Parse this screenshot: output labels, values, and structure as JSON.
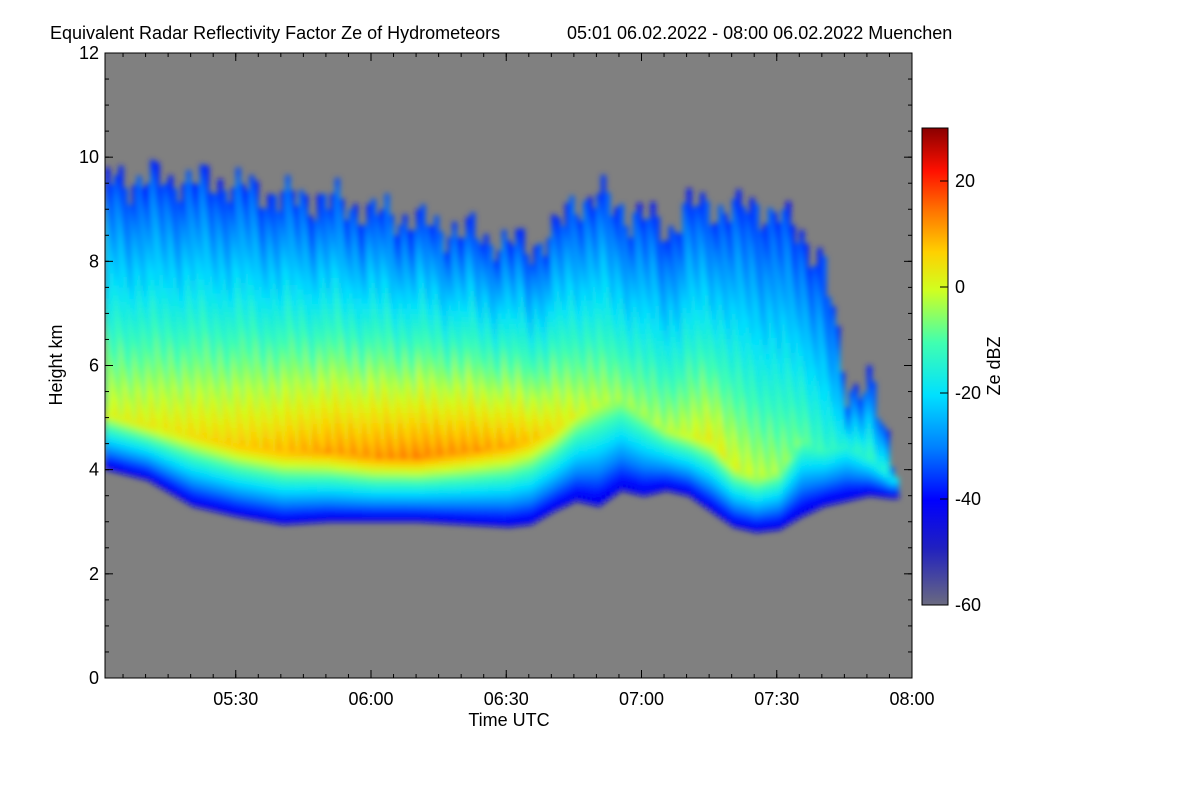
{
  "chart_data": {
    "type": "heatmap",
    "title": "Equivalent Radar Reflectivity Factor Ze of Hydrometeors",
    "subtitle": "05:01 06.02.2022 - 08:00 06.02.2022 Muenchen",
    "xlabel": "Time UTC",
    "ylabel": "Height km",
    "x_unit": "minutes of day (UTC)",
    "xlim": [
      301,
      480
    ],
    "ylim": [
      0,
      12
    ],
    "x_ticks": [
      {
        "value": 330,
        "label": "05:30"
      },
      {
        "value": 360,
        "label": "06:00"
      },
      {
        "value": 390,
        "label": "06:30"
      },
      {
        "value": 420,
        "label": "07:00"
      },
      {
        "value": 450,
        "label": "07:30"
      },
      {
        "value": 480,
        "label": "08:00"
      }
    ],
    "y_ticks": [
      0,
      2,
      4,
      6,
      8,
      10,
      12
    ],
    "colorbar": {
      "label": "Ze dBZ",
      "range": [
        -60,
        30
      ],
      "ticks": [
        -60,
        -40,
        -20,
        0,
        20
      ]
    },
    "background_color": "#808080",
    "cloud_profile": {
      "description_x": "time in minutes of day",
      "time": [
        301,
        310,
        320,
        330,
        340,
        350,
        360,
        370,
        380,
        390,
        395,
        400,
        405,
        410,
        415,
        420,
        425,
        430,
        435,
        440,
        445,
        450,
        455,
        460,
        465,
        470,
        475
      ],
      "base_km": [
        4.0,
        3.8,
        3.3,
        3.1,
        2.95,
        3.0,
        3.0,
        3.0,
        2.95,
        2.9,
        2.95,
        3.2,
        3.4,
        3.3,
        3.6,
        3.5,
        3.6,
        3.5,
        3.2,
        2.9,
        2.8,
        2.85,
        3.1,
        3.3,
        3.4,
        3.5,
        3.45
      ],
      "top_km": [
        9.5,
        9.5,
        9.5,
        9.4,
        9.2,
        9.1,
        8.9,
        8.7,
        8.5,
        8.3,
        8.2,
        8.5,
        9.1,
        9.2,
        8.9,
        8.8,
        8.5,
        9.0,
        9.0,
        8.9,
        9.0,
        8.8,
        8.5,
        7.8,
        5.5,
        5.6,
        4.2
      ],
      "peak_height_km": [
        5.0,
        4.8,
        4.6,
        4.4,
        4.3,
        4.3,
        4.2,
        4.2,
        4.3,
        4.4,
        4.5,
        4.7,
        5.0,
        5.2,
        5.3,
        5.0,
        4.7,
        4.6,
        4.5,
        4.0,
        3.8,
        3.9,
        4.5,
        4.3,
        4.4,
        4.2,
        3.8
      ],
      "peak_dBZ": [
        -2,
        0,
        2,
        4,
        6,
        8,
        9,
        10,
        9,
        7,
        5,
        2,
        -2,
        -4,
        -6,
        -6,
        -5,
        -3,
        0,
        -2,
        -4,
        -6,
        -10,
        -14,
        -16,
        -14,
        -18
      ]
    }
  }
}
